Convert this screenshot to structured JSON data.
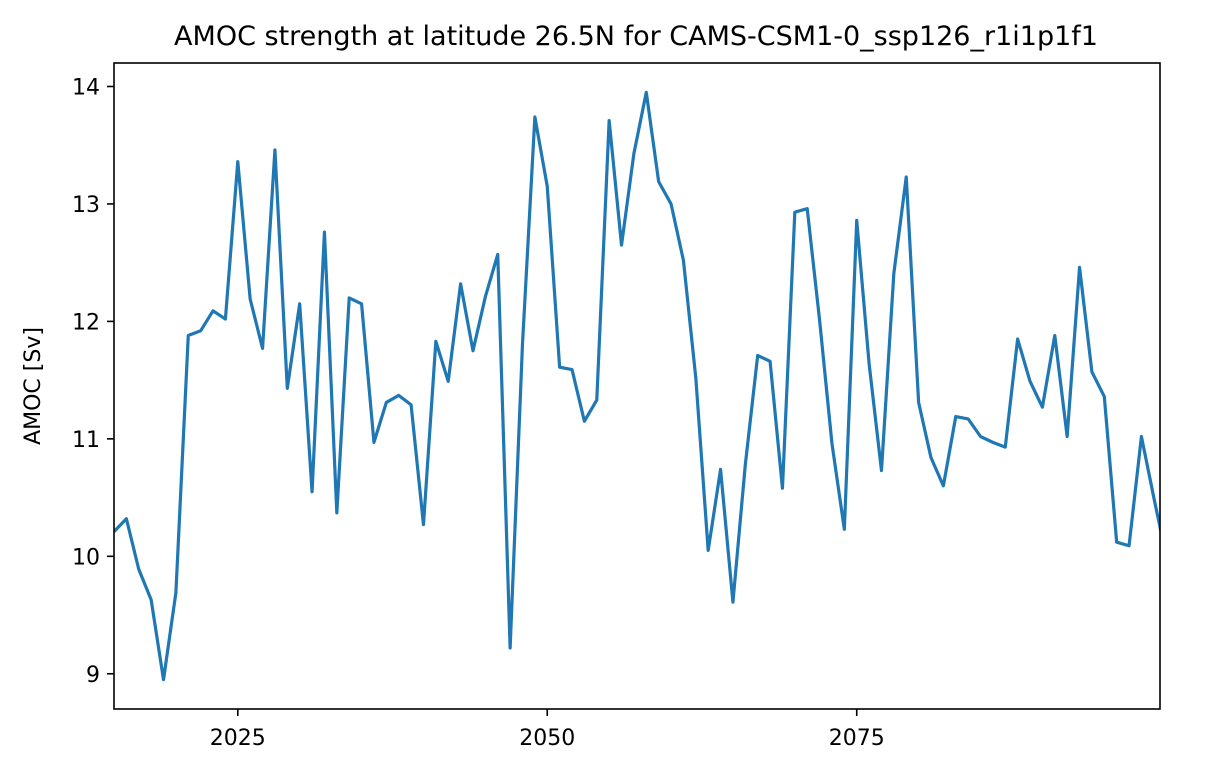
{
  "chart_data": {
    "type": "line",
    "title": "AMOC strength at latitude 26.5N for CAMS-CSM1-0_ssp126_r1i1p1f1",
    "xlabel": "",
    "ylabel": "AMOC [Sv]",
    "xlim": [
      2015,
      2099.5
    ],
    "ylim": [
      8.7,
      14.2
    ],
    "xticks": [
      2025,
      2050,
      2075
    ],
    "yticks": [
      9,
      10,
      11,
      12,
      13,
      14
    ],
    "grid": false,
    "color": "#1f77b4",
    "series": [
      {
        "x": [
          2015,
          2016,
          2017,
          2018,
          2019,
          2020,
          2021,
          2022,
          2023,
          2024,
          2025,
          2026,
          2027,
          2028,
          2029,
          2030,
          2031,
          2032,
          2033,
          2034,
          2035,
          2036,
          2037,
          2038,
          2039,
          2040,
          2041,
          2042,
          2043,
          2044,
          2045,
          2046,
          2047,
          2048,
          2049,
          2050,
          2051,
          2052,
          2053,
          2054,
          2055,
          2056,
          2057,
          2058,
          2059,
          2060,
          2061,
          2062,
          2063,
          2064,
          2065,
          2066,
          2067,
          2068,
          2069,
          2070,
          2071,
          2072,
          2073,
          2074,
          2075,
          2076,
          2077,
          2078,
          2079,
          2080,
          2081,
          2082,
          2083,
          2084,
          2085,
          2086,
          2087,
          2088,
          2089,
          2090,
          2091,
          2092,
          2093,
          2094,
          2095,
          2096,
          2097,
          2098,
          2099,
          2100
        ],
        "y": [
          10.21,
          10.32,
          9.89,
          9.63,
          8.95,
          9.69,
          11.88,
          11.92,
          12.09,
          12.02,
          13.36,
          12.19,
          11.77,
          13.46,
          11.43,
          12.15,
          10.55,
          12.76,
          10.37,
          12.2,
          12.15,
          10.97,
          11.31,
          11.37,
          11.29,
          10.27,
          11.83,
          11.49,
          12.32,
          11.75,
          12.21,
          12.57,
          9.22,
          11.81,
          13.74,
          13.15,
          11.61,
          11.59,
          11.15,
          11.33,
          13.71,
          12.65,
          13.43,
          13.95,
          13.19,
          13.0,
          12.52,
          11.52,
          10.05,
          10.74,
          9.61,
          10.78,
          11.71,
          11.66,
          10.58,
          12.93,
          12.96,
          12.01,
          10.96,
          10.23,
          12.86,
          11.64,
          10.73,
          12.41,
          13.23,
          11.31,
          10.84,
          10.6,
          11.19,
          11.17,
          11.02,
          10.97,
          10.93,
          11.85,
          11.49,
          11.27,
          11.88,
          11.02,
          12.46,
          11.57,
          11.36,
          10.12,
          10.09,
          11.02,
          10.5,
          10.0
        ]
      }
    ]
  }
}
